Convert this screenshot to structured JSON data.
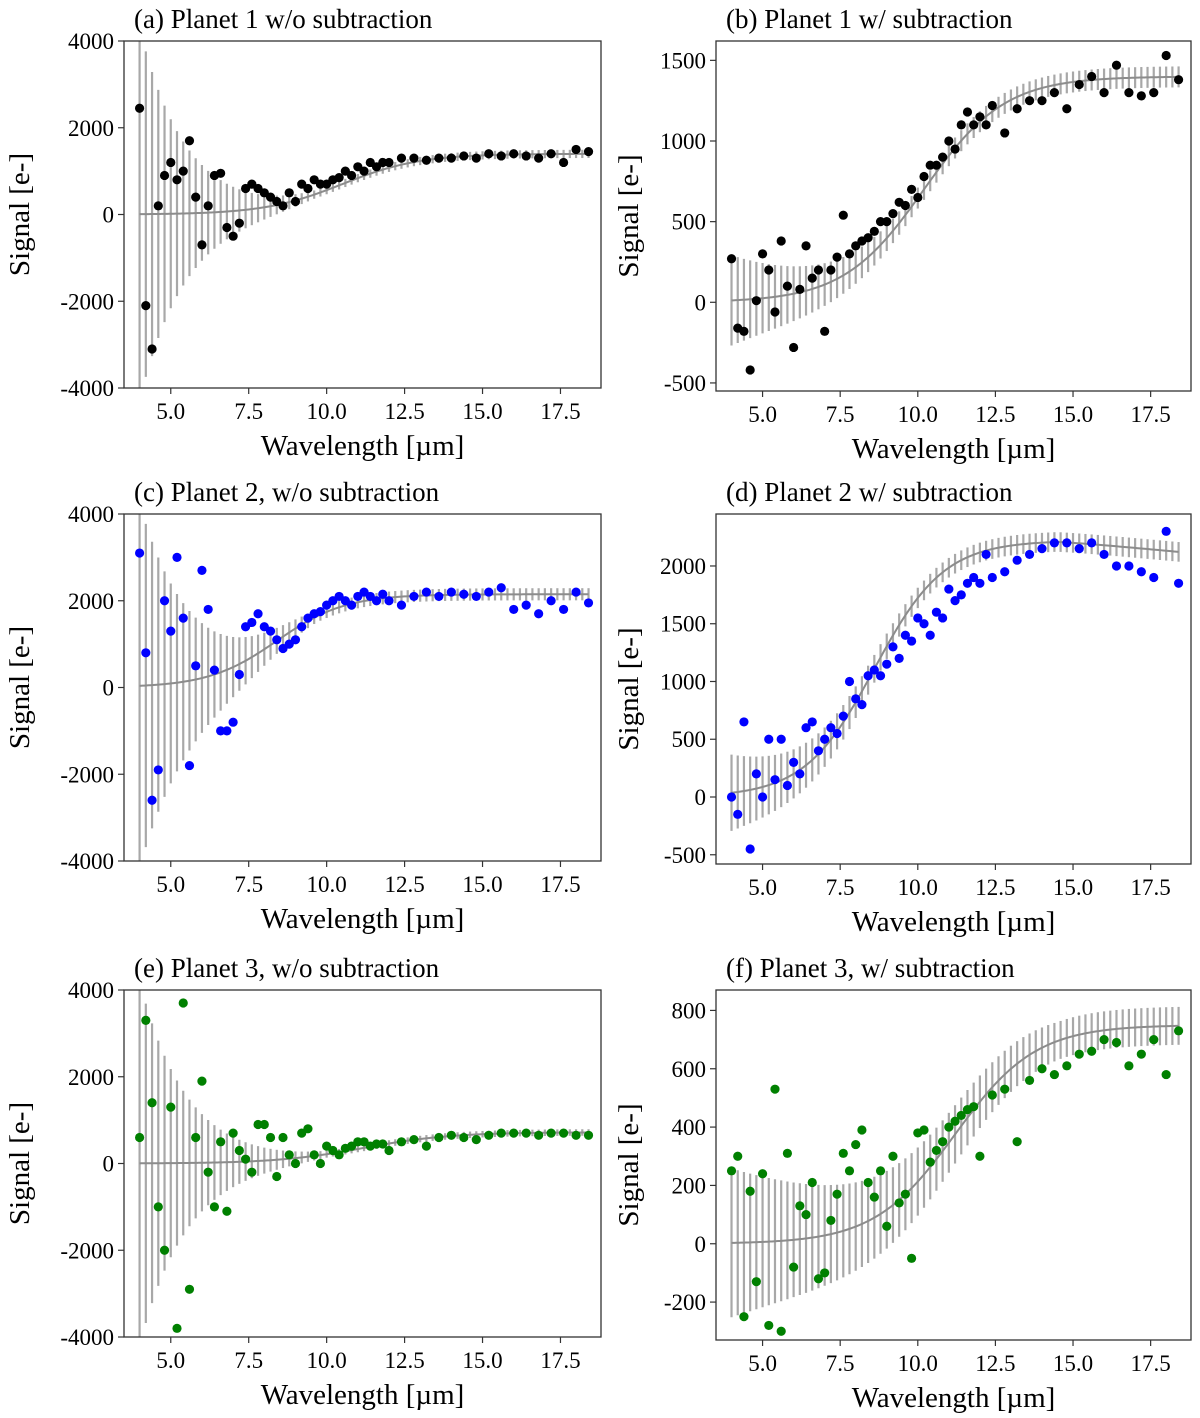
{
  "figure": {
    "fit_color": "#8c8c8c",
    "errorbar_color": "#a8a8a8"
  },
  "chart_data": [
    {
      "id": "a",
      "type": "scatter",
      "title": "(a) Planet 1 w/o subtraction",
      "xlabel": "Wavelength [µm]",
      "ylabel": "Signal [e-]",
      "xlim": [
        3.5,
        18.8
      ],
      "ylim": [
        -4000,
        4000
      ],
      "xticks": [
        "5.0",
        "7.5",
        "10.0",
        "12.5",
        "15.0",
        "17.5"
      ],
      "yticks": [
        "-4000",
        "-2000",
        "0",
        "2000",
        "4000"
      ],
      "marker_color": "#000000",
      "grid": false,
      "model": {
        "baseline": 0,
        "amplitude": 1400,
        "center": 10.5,
        "width": 2.5,
        "tail_slope": 0
      },
      "errorbar_sigma": {
        "at_4um": 4300,
        "decay_per_um": 0.68,
        "floor": 95
      },
      "x": [
        4.0,
        4.2,
        4.4,
        4.6,
        4.8,
        5.0,
        5.2,
        5.4,
        5.6,
        5.8,
        6.0,
        6.2,
        6.4,
        6.6,
        6.8,
        7.0,
        7.2,
        7.4,
        7.6,
        7.8,
        8.0,
        8.2,
        8.4,
        8.6,
        8.8,
        9.0,
        9.2,
        9.4,
        9.6,
        9.8,
        10.0,
        10.2,
        10.4,
        10.6,
        10.8,
        11.0,
        11.2,
        11.4,
        11.6,
        11.8,
        12.0,
        12.4,
        12.8,
        13.2,
        13.6,
        14.0,
        14.4,
        14.8,
        15.2,
        15.6,
        16.0,
        16.4,
        16.8,
        17.2,
        17.6,
        18.0,
        18.4
      ],
      "y": [
        2450,
        -2100,
        -3100,
        200,
        900,
        1200,
        800,
        1000,
        1700,
        400,
        -700,
        200,
        900,
        950,
        -300,
        -500,
        -200,
        600,
        700,
        600,
        500,
        400,
        300,
        200,
        500,
        300,
        700,
        600,
        800,
        700,
        700,
        800,
        850,
        1000,
        900,
        1100,
        1000,
        1200,
        1100,
        1200,
        1200,
        1300,
        1300,
        1250,
        1300,
        1300,
        1350,
        1300,
        1400,
        1350,
        1400,
        1350,
        1300,
        1400,
        1200,
        1500,
        1450
      ]
    },
    {
      "id": "b",
      "type": "scatter",
      "title": "(b) Planet 1 w/ subtraction",
      "xlabel": "Wavelength [µm]",
      "ylabel": "Signal [e-]",
      "xlim": [
        3.5,
        18.8
      ],
      "ylim": [
        -550,
        1620
      ],
      "xticks": [
        "5.0",
        "7.5",
        "10.0",
        "12.5",
        "15.0",
        "17.5"
      ],
      "yticks": [
        "-500",
        "0",
        "500",
        "1000",
        "1500"
      ],
      "marker_color": "#000000",
      "grid": false,
      "model": {
        "baseline": 0,
        "amplitude": 1400,
        "center": 10.2,
        "width": 2.6,
        "tail_slope": 0
      },
      "errorbar_sigma": {
        "at_4um": 280,
        "decay_per_um": 0.25,
        "floor": 65
      },
      "x": [
        4.0,
        4.2,
        4.4,
        4.6,
        4.8,
        5.0,
        5.2,
        5.4,
        5.6,
        5.8,
        6.0,
        6.2,
        6.4,
        6.6,
        6.8,
        7.0,
        7.2,
        7.4,
        7.6,
        7.8,
        8.0,
        8.2,
        8.4,
        8.6,
        8.8,
        9.0,
        9.2,
        9.4,
        9.6,
        9.8,
        10.0,
        10.2,
        10.4,
        10.6,
        10.8,
        11.0,
        11.2,
        11.4,
        11.6,
        11.8,
        12.0,
        12.2,
        12.4,
        12.8,
        13.2,
        13.6,
        14.0,
        14.4,
        14.8,
        15.2,
        15.6,
        16.0,
        16.4,
        16.8,
        17.2,
        17.6,
        18.0,
        18.4
      ],
      "y": [
        270,
        -160,
        -180,
        -420,
        10,
        300,
        200,
        -60,
        380,
        100,
        -280,
        80,
        350,
        150,
        200,
        -180,
        200,
        280,
        540,
        300,
        350,
        380,
        400,
        440,
        500,
        500,
        550,
        620,
        600,
        700,
        650,
        780,
        850,
        850,
        900,
        1000,
        950,
        1100,
        1180,
        1100,
        1150,
        1100,
        1220,
        1050,
        1200,
        1250,
        1250,
        1300,
        1200,
        1350,
        1400,
        1300,
        1470,
        1300,
        1280,
        1300,
        1530,
        1380
      ]
    },
    {
      "id": "c",
      "type": "scatter",
      "title": "(c) Planet 2, w/o subtraction",
      "xlabel": "Wavelength [µm]",
      "ylabel": "Signal [e-]",
      "xlim": [
        3.5,
        18.8
      ],
      "ylim": [
        -4000,
        4000
      ],
      "xticks": [
        "5.0",
        "7.5",
        "10.0",
        "12.5",
        "15.0",
        "17.5"
      ],
      "yticks": [
        "-4000",
        "-2000",
        "0",
        "2000",
        "4000"
      ],
      "marker_color": "#0000ff",
      "grid": false,
      "model": {
        "baseline": 0,
        "amplitude": 2150,
        "center": 8.4,
        "width": 2.2,
        "tail_slope": 0
      },
      "errorbar_sigma": {
        "at_4um": 4200,
        "decay_per_um": 0.6,
        "floor": 140
      },
      "x": [
        4.0,
        4.2,
        4.4,
        4.6,
        4.8,
        5.0,
        5.2,
        5.4,
        5.6,
        5.8,
        6.0,
        6.2,
        6.4,
        6.6,
        6.8,
        7.0,
        7.2,
        7.4,
        7.6,
        7.8,
        8.0,
        8.2,
        8.4,
        8.6,
        8.8,
        9.0,
        9.2,
        9.4,
        9.6,
        9.8,
        10.0,
        10.2,
        10.4,
        10.6,
        10.8,
        11.0,
        11.2,
        11.4,
        11.6,
        11.8,
        12.0,
        12.4,
        12.8,
        13.2,
        13.6,
        14.0,
        14.4,
        14.8,
        15.2,
        15.6,
        16.0,
        16.4,
        16.8,
        17.2,
        17.6,
        18.0,
        18.4
      ],
      "y": [
        3100,
        800,
        -2600,
        -1900,
        2000,
        1300,
        3000,
        1600,
        -1800,
        500,
        2700,
        1800,
        400,
        -1000,
        -1000,
        -800,
        300,
        1400,
        1500,
        1700,
        1400,
        1300,
        1100,
        900,
        1000,
        1100,
        1400,
        1600,
        1700,
        1750,
        1900,
        2000,
        2100,
        2000,
        1900,
        2100,
        2200,
        2100,
        2000,
        2150,
        2000,
        1900,
        2100,
        2200,
        2100,
        2200,
        2150,
        2100,
        2200,
        2300,
        1800,
        1900,
        1700,
        2000,
        1800,
        2200,
        1950
      ]
    },
    {
      "id": "d",
      "type": "scatter",
      "title": "(d) Planet 2 w/ subtraction",
      "xlabel": "Wavelength [µm]",
      "ylabel": "Signal [e-]",
      "xlim": [
        3.5,
        18.8
      ],
      "ylim": [
        -580,
        2450
      ],
      "xticks": [
        "5.0",
        "7.5",
        "10.0",
        "12.5",
        "15.0",
        "17.5"
      ],
      "yticks": [
        "-500",
        "0",
        "500",
        "1000",
        "1500",
        "2000"
      ],
      "marker_color": "#0000ff",
      "grid": false,
      "model": {
        "baseline": 0,
        "amplitude": 2220,
        "center": 8.6,
        "width": 2.25,
        "tail_slope": -25
      },
      "errorbar_sigma": {
        "at_4um": 330,
        "decay_per_um": 0.22,
        "floor": 85
      },
      "x": [
        4.0,
        4.2,
        4.4,
        4.6,
        4.8,
        5.0,
        5.2,
        5.4,
        5.6,
        5.8,
        6.0,
        6.2,
        6.4,
        6.6,
        6.8,
        7.0,
        7.2,
        7.4,
        7.6,
        7.8,
        8.0,
        8.2,
        8.4,
        8.6,
        8.8,
        9.0,
        9.2,
        9.4,
        9.6,
        9.8,
        10.0,
        10.2,
        10.4,
        10.6,
        10.8,
        11.0,
        11.2,
        11.4,
        11.6,
        11.8,
        12.0,
        12.2,
        12.4,
        12.8,
        13.2,
        13.6,
        14.0,
        14.4,
        14.8,
        15.2,
        15.6,
        16.0,
        16.4,
        16.8,
        17.2,
        17.6,
        18.0,
        18.4
      ],
      "y": [
        0,
        -150,
        650,
        -450,
        200,
        0,
        500,
        150,
        500,
        100,
        300,
        200,
        600,
        650,
        400,
        500,
        600,
        550,
        700,
        1000,
        850,
        800,
        1050,
        1100,
        1050,
        1150,
        1300,
        1200,
        1400,
        1350,
        1550,
        1500,
        1400,
        1600,
        1550,
        1800,
        1700,
        1750,
        1850,
        1900,
        1850,
        2100,
        1900,
        1950,
        2050,
        2100,
        2150,
        2200,
        2200,
        2150,
        2200,
        2100,
        2000,
        2000,
        1950,
        1900,
        2300,
        1850
      ]
    },
    {
      "id": "e",
      "type": "scatter",
      "title": "(e) Planet 3, w/o subtraction",
      "xlabel": "Wavelength [µm]",
      "ylabel": "Signal [e-]",
      "xlim": [
        3.5,
        18.8
      ],
      "ylim": [
        -4000,
        4000
      ],
      "xticks": [
        "5.0",
        "7.5",
        "10.0",
        "12.5",
        "15.0",
        "17.5"
      ],
      "yticks": [
        "-4000",
        "-2000",
        "0",
        "2000",
        "4000"
      ],
      "marker_color": "#008000",
      "grid": false,
      "model": {
        "baseline": 0,
        "amplitude": 720,
        "center": 11.2,
        "width": 2.8,
        "tail_slope": 0
      },
      "errorbar_sigma": {
        "at_4um": 4200,
        "decay_per_um": 0.66,
        "floor": 75
      },
      "x": [
        4.0,
        4.2,
        4.4,
        4.6,
        4.8,
        5.0,
        5.2,
        5.4,
        5.6,
        5.8,
        6.0,
        6.2,
        6.4,
        6.6,
        6.8,
        7.0,
        7.2,
        7.4,
        7.6,
        7.8,
        8.0,
        8.2,
        8.4,
        8.6,
        8.8,
        9.0,
        9.2,
        9.4,
        9.6,
        9.8,
        10.0,
        10.2,
        10.4,
        10.6,
        10.8,
        11.0,
        11.2,
        11.4,
        11.6,
        11.8,
        12.0,
        12.4,
        12.8,
        13.2,
        13.6,
        14.0,
        14.4,
        14.8,
        15.2,
        15.6,
        16.0,
        16.4,
        16.8,
        17.2,
        17.6,
        18.0,
        18.4
      ],
      "y": [
        600,
        3300,
        1400,
        -1000,
        -2000,
        1300,
        -3800,
        3700,
        -2900,
        600,
        1900,
        -200,
        -1000,
        500,
        -1100,
        700,
        300,
        100,
        -200,
        900,
        900,
        600,
        -300,
        600,
        200,
        0,
        700,
        800,
        200,
        0,
        400,
        300,
        200,
        350,
        400,
        500,
        500,
        400,
        450,
        450,
        300,
        500,
        550,
        400,
        600,
        650,
        600,
        550,
        650,
        700,
        700,
        700,
        650,
        700,
        700,
        650,
        650
      ]
    },
    {
      "id": "f",
      "type": "scatter",
      "title": "(f) Planet 3, w/ subtraction",
      "xlabel": "Wavelength [µm]",
      "ylabel": "Signal [e-]",
      "xlim": [
        3.5,
        18.8
      ],
      "ylim": [
        -330,
        870
      ],
      "xticks": [
        "5.0",
        "7.5",
        "10.0",
        "12.5",
        "15.0",
        "17.5"
      ],
      "yticks": [
        "-200",
        "0",
        "200",
        "400",
        "600",
        "800"
      ],
      "marker_color": "#008000",
      "grid": false,
      "model": {
        "baseline": 0,
        "amplitude": 750,
        "center": 11.2,
        "width": 2.6,
        "tail_slope": 0
      },
      "errorbar_sigma": {
        "at_4um": 255,
        "decay_per_um": 0.13,
        "floor": 65
      },
      "x": [
        4.0,
        4.2,
        4.4,
        4.6,
        4.8,
        5.0,
        5.2,
        5.4,
        5.6,
        5.8,
        6.0,
        6.2,
        6.4,
        6.6,
        6.8,
        7.0,
        7.2,
        7.4,
        7.6,
        7.8,
        8.0,
        8.2,
        8.4,
        8.6,
        8.8,
        9.0,
        9.2,
        9.4,
        9.6,
        9.8,
        10.0,
        10.2,
        10.4,
        10.6,
        10.8,
        11.0,
        11.2,
        11.4,
        11.6,
        11.8,
        12.0,
        12.4,
        12.8,
        13.2,
        13.6,
        14.0,
        14.4,
        14.8,
        15.2,
        15.6,
        16.0,
        16.4,
        16.8,
        17.2,
        17.6,
        18.0,
        18.4
      ],
      "y": [
        250,
        300,
        -250,
        180,
        -130,
        240,
        -280,
        530,
        -300,
        310,
        -80,
        130,
        100,
        210,
        -120,
        -100,
        80,
        170,
        310,
        250,
        340,
        390,
        210,
        160,
        250,
        60,
        300,
        140,
        170,
        -50,
        380,
        390,
        280,
        320,
        350,
        400,
        420,
        440,
        460,
        470,
        300,
        510,
        530,
        350,
        560,
        600,
        580,
        610,
        650,
        660,
        700,
        690,
        610,
        650,
        700,
        580,
        730
      ]
    }
  ]
}
